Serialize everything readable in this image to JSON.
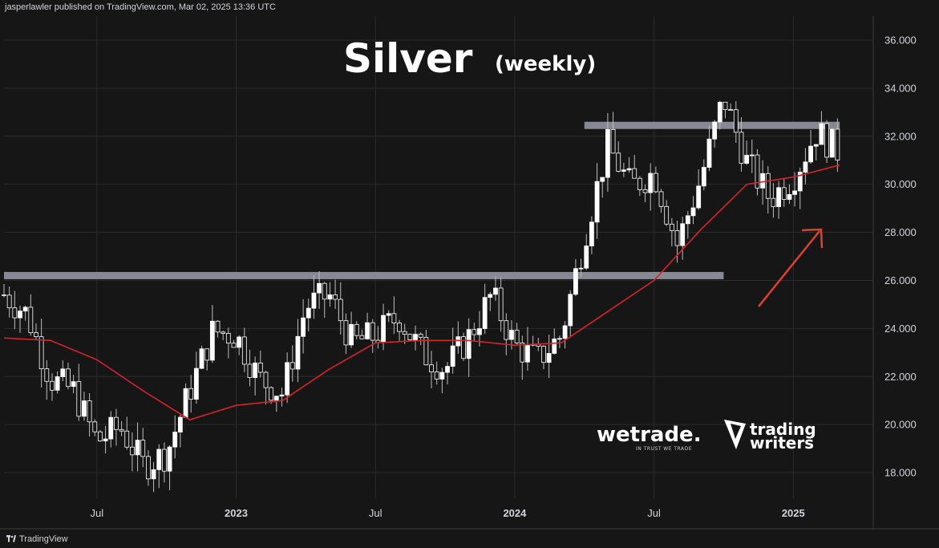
{
  "header": {
    "publish_info": "jasperlawler published on TradingView.com, Mar 02, 2025 13:36 UTC"
  },
  "footer": {
    "brand": "TradingView"
  },
  "watermarks": {
    "wetrade": "wetrade.",
    "wetrade_tagline": "IN TRUST WE TRADE",
    "trading_writers_line1": "trading",
    "trading_writers_line2": "writers"
  },
  "colors": {
    "background": "#161616",
    "plot_background": "#161616",
    "grid": "#2b2b2b",
    "candle_bull": "#ffffff",
    "candle_bear": "#161616",
    "wick": "#bdbdbd",
    "moving_average": "#d5232a",
    "resistance_band": "#868993",
    "arrow": "#e0402e",
    "text": "#d1d4dc"
  },
  "chart_data": {
    "type": "candlestick",
    "title": "Silver",
    "subtitle": "(weekly)",
    "y_axis": {
      "range": [
        16.9,
        37.0
      ],
      "ticks": [
        "18.000",
        "20.000",
        "22.000",
        "24.000",
        "26.000",
        "28.000",
        "30.000",
        "32.000",
        "34.000",
        "36.000"
      ],
      "position": "right"
    },
    "x_axis": {
      "labels": [
        {
          "text": "Jul",
          "date": "2022-07"
        },
        {
          "text": "2023",
          "date": "2023-01"
        },
        {
          "text": "Jul",
          "date": "2023-07"
        },
        {
          "text": "2024",
          "date": "2024-01"
        },
        {
          "text": "Jul",
          "date": "2024-07"
        },
        {
          "text": "2025",
          "date": "2025-01"
        }
      ]
    },
    "grid": true,
    "horizontal_levels": [
      {
        "value": 26.2,
        "from": "2022-03",
        "to": "2024-10"
      },
      {
        "value": 32.45,
        "from": "2024-04",
        "to": "2025-03"
      }
    ],
    "annotation": {
      "type": "arrow",
      "direction": "up-right"
    },
    "ohlc_control_points": [
      {
        "date": "2022-03",
        "close": 25.4
      },
      {
        "date": "2022-04",
        "close": 24.6
      },
      {
        "date": "2022-05",
        "close": 21.9
      },
      {
        "date": "2022-06",
        "close": 21.4
      },
      {
        "date": "2022-07",
        "close": 19.3
      },
      {
        "date": "2022-08",
        "close": 19.9
      },
      {
        "date": "2022-09",
        "close": 18.3
      },
      {
        "date": "2022-10",
        "close": 18.8
      },
      {
        "date": "2022-11",
        "close": 21.4
      },
      {
        "date": "2022-12",
        "close": 23.9
      },
      {
        "date": "2023-01",
        "close": 23.7
      },
      {
        "date": "2023-02",
        "close": 21.9
      },
      {
        "date": "2023-03",
        "close": 21.3
      },
      {
        "date": "2023-04",
        "close": 24.9
      },
      {
        "date": "2023-05",
        "close": 25.4
      },
      {
        "date": "2023-06",
        "close": 23.4
      },
      {
        "date": "2023-07",
        "close": 23.7
      },
      {
        "date": "2023-08",
        "close": 24.5
      },
      {
        "date": "2023-09",
        "close": 23.0
      },
      {
        "date": "2023-10",
        "close": 22.3
      },
      {
        "date": "2023-11",
        "close": 23.6
      },
      {
        "date": "2023-12",
        "close": 25.4
      },
      {
        "date": "2024-01",
        "close": 23.3
      },
      {
        "date": "2024-02",
        "close": 22.7
      },
      {
        "date": "2024-03",
        "close": 23.7
      },
      {
        "date": "2024-04",
        "close": 27.8
      },
      {
        "date": "2024-05",
        "close": 31.6
      },
      {
        "date": "2024-06",
        "close": 29.9
      },
      {
        "date": "2024-07",
        "close": 30.5
      },
      {
        "date": "2024-08",
        "close": 27.5
      },
      {
        "date": "2024-09",
        "close": 30.2
      },
      {
        "date": "2024-10",
        "close": 33.6
      },
      {
        "date": "2024-11",
        "close": 30.9
      },
      {
        "date": "2024-12",
        "close": 29.4
      },
      {
        "date": "2025-01",
        "close": 30.3
      },
      {
        "date": "2025-02",
        "close": 32.2
      },
      {
        "date": "2025-03",
        "close": 31.3
      }
    ],
    "moving_average": {
      "color": "#d5232a",
      "values": [
        {
          "date": "2022-03",
          "value": 23.6
        },
        {
          "date": "2022-05",
          "value": 23.5
        },
        {
          "date": "2022-07",
          "value": 22.7
        },
        {
          "date": "2022-09",
          "value": 21.4
        },
        {
          "date": "2022-11",
          "value": 20.2
        },
        {
          "date": "2023-01",
          "value": 20.8
        },
        {
          "date": "2023-03",
          "value": 21.0
        },
        {
          "date": "2023-05",
          "value": 22.3
        },
        {
          "date": "2023-07",
          "value": 23.4
        },
        {
          "date": "2023-09",
          "value": 23.5
        },
        {
          "date": "2023-11",
          "value": 23.5
        },
        {
          "date": "2024-01",
          "value": 23.3
        },
        {
          "date": "2024-03",
          "value": 23.4
        },
        {
          "date": "2024-05",
          "value": 24.7
        },
        {
          "date": "2024-07",
          "value": 26.0
        },
        {
          "date": "2024-09",
          "value": 28.1
        },
        {
          "date": "2024-11",
          "value": 30.0
        },
        {
          "date": "2025-01",
          "value": 30.3
        },
        {
          "date": "2025-03",
          "value": 30.8
        }
      ]
    }
  }
}
